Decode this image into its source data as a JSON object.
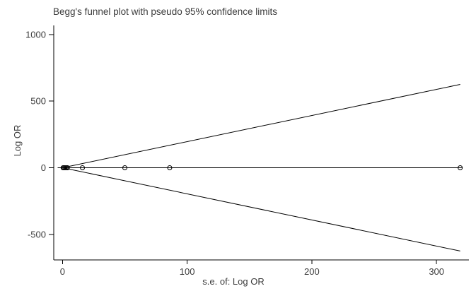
{
  "figure": {
    "background": "#ffffff",
    "text_color": "#3c3c3c",
    "line_color": "#000000"
  },
  "chart_data": {
    "type": "scatter",
    "subtype": "funnel-plot",
    "title": "Begg's funnel plot with pseudo 95% confidence limits",
    "xlabel": "s.e. of: Log OR",
    "ylabel": "Log OR",
    "x_ticks": [
      0,
      100,
      200,
      300
    ],
    "y_ticks": [
      1000,
      500,
      0,
      -500
    ],
    "xlim": [
      -7,
      326
    ],
    "ylim": [
      -692,
      1068
    ],
    "grid": false,
    "legend": null,
    "points": [
      {
        "se": 0.5,
        "log_or": 0
      },
      {
        "se": 1.2,
        "log_or": 0
      },
      {
        "se": 2,
        "log_or": 0
      },
      {
        "se": 3,
        "log_or": 0
      },
      {
        "se": 4,
        "log_or": 0
      },
      {
        "se": 16,
        "log_or": 0
      },
      {
        "se": 50,
        "log_or": 0
      },
      {
        "se": 86,
        "log_or": 0
      },
      {
        "se": 319,
        "log_or": 0
      }
    ],
    "pooled_line": {
      "log_or": 0,
      "se_range": [
        -4,
        321
      ]
    },
    "funnel_limits": {
      "multiplier": 1.96,
      "se_max": 319,
      "vertex_log_or": 0
    }
  }
}
